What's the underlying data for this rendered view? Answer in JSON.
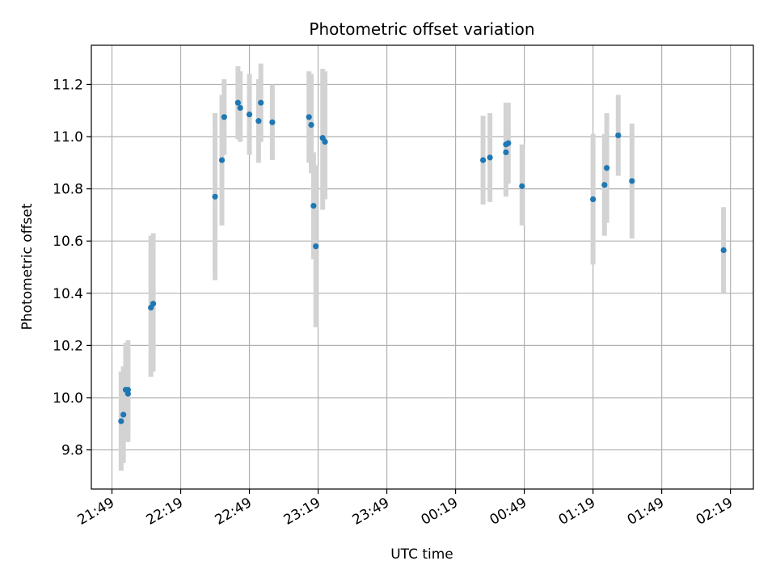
{
  "chart_data": {
    "type": "scatter",
    "title": "Photometric offset variation",
    "xlabel": "UTC time",
    "ylabel": "Photometric offset",
    "x_unit": "UTC time (HH:MM), 21:49 on day 1 through 02:19 on day 2",
    "xlim": [
      "21:40",
      "02:29"
    ],
    "ylim": [
      9.65,
      11.35
    ],
    "grid": true,
    "legend": "none",
    "x_ticks": [
      "21:49",
      "22:19",
      "22:49",
      "23:19",
      "23:49",
      "00:19",
      "00:49",
      "01:19",
      "01:49",
      "02:19"
    ],
    "y_ticks": [
      "9.8",
      "10.0",
      "10.2",
      "10.4",
      "10.6",
      "10.8",
      "11.0",
      "11.2"
    ],
    "point_color": "#1f77b4",
    "errorbar_color": "#d3d3d3",
    "points": [
      {
        "time": "21:53",
        "y": 9.91,
        "err_low": 9.72,
        "err_high": 10.1
      },
      {
        "time": "21:54",
        "y": 9.935,
        "err_low": 9.75,
        "err_high": 10.12
      },
      {
        "time": "21:55",
        "y": 10.03,
        "err_low": 9.84,
        "err_high": 10.21
      },
      {
        "time": "21:56",
        "y": 10.015,
        "err_low": 9.83,
        "err_high": 10.19
      },
      {
        "time": "21:56",
        "y": 10.03,
        "err_low": 9.85,
        "err_high": 10.22
      },
      {
        "time": "22:06",
        "y": 10.345,
        "err_low": 10.08,
        "err_high": 10.62
      },
      {
        "time": "22:07",
        "y": 10.36,
        "err_low": 10.1,
        "err_high": 10.63
      },
      {
        "time": "22:34",
        "y": 10.77,
        "err_low": 10.45,
        "err_high": 11.09
      },
      {
        "time": "22:37",
        "y": 10.91,
        "err_low": 10.66,
        "err_high": 11.16
      },
      {
        "time": "22:38",
        "y": 11.075,
        "err_low": 10.93,
        "err_high": 11.22
      },
      {
        "time": "22:44",
        "y": 11.13,
        "err_low": 10.99,
        "err_high": 11.27
      },
      {
        "time": "22:45",
        "y": 11.11,
        "err_low": 10.98,
        "err_high": 11.25
      },
      {
        "time": "22:49",
        "y": 11.085,
        "err_low": 10.93,
        "err_high": 11.24
      },
      {
        "time": "22:53",
        "y": 11.06,
        "err_low": 10.9,
        "err_high": 11.22
      },
      {
        "time": "22:54",
        "y": 11.13,
        "err_low": 10.98,
        "err_high": 11.28
      },
      {
        "time": "22:59",
        "y": 11.055,
        "err_low": 10.91,
        "err_high": 11.2
      },
      {
        "time": "23:15",
        "y": 11.075,
        "err_low": 10.9,
        "err_high": 11.25
      },
      {
        "time": "23:16",
        "y": 11.045,
        "err_low": 10.86,
        "err_high": 11.24
      },
      {
        "time": "23:17",
        "y": 10.735,
        "err_low": 10.53,
        "err_high": 10.94
      },
      {
        "time": "23:18",
        "y": 10.58,
        "err_low": 10.27,
        "err_high": 10.89
      },
      {
        "time": "23:21",
        "y": 10.995,
        "err_low": 10.72,
        "err_high": 11.26
      },
      {
        "time": "23:22",
        "y": 10.98,
        "err_low": 10.76,
        "err_high": 11.25
      },
      {
        "time": "00:31",
        "y": 10.91,
        "err_low": 10.74,
        "err_high": 11.08
      },
      {
        "time": "00:34",
        "y": 10.92,
        "err_low": 10.75,
        "err_high": 11.09
      },
      {
        "time": "00:41",
        "y": 10.97,
        "err_low": 10.77,
        "err_high": 11.13
      },
      {
        "time": "00:41",
        "y": 10.94,
        "err_low": 10.78,
        "err_high": 11.1
      },
      {
        "time": "00:42",
        "y": 10.975,
        "err_low": 10.82,
        "err_high": 11.13
      },
      {
        "time": "00:48",
        "y": 10.81,
        "err_low": 10.66,
        "err_high": 10.97
      },
      {
        "time": "01:19",
        "y": 10.76,
        "err_low": 10.51,
        "err_high": 11.01
      },
      {
        "time": "01:24",
        "y": 10.815,
        "err_low": 10.62,
        "err_high": 11.01
      },
      {
        "time": "01:25",
        "y": 10.88,
        "err_low": 10.67,
        "err_high": 11.09
      },
      {
        "time": "01:30",
        "y": 11.005,
        "err_low": 10.85,
        "err_high": 11.16
      },
      {
        "time": "01:36",
        "y": 10.83,
        "err_low": 10.61,
        "err_high": 11.05
      },
      {
        "time": "02:16",
        "y": 10.565,
        "err_low": 10.4,
        "err_high": 10.73
      }
    ]
  }
}
